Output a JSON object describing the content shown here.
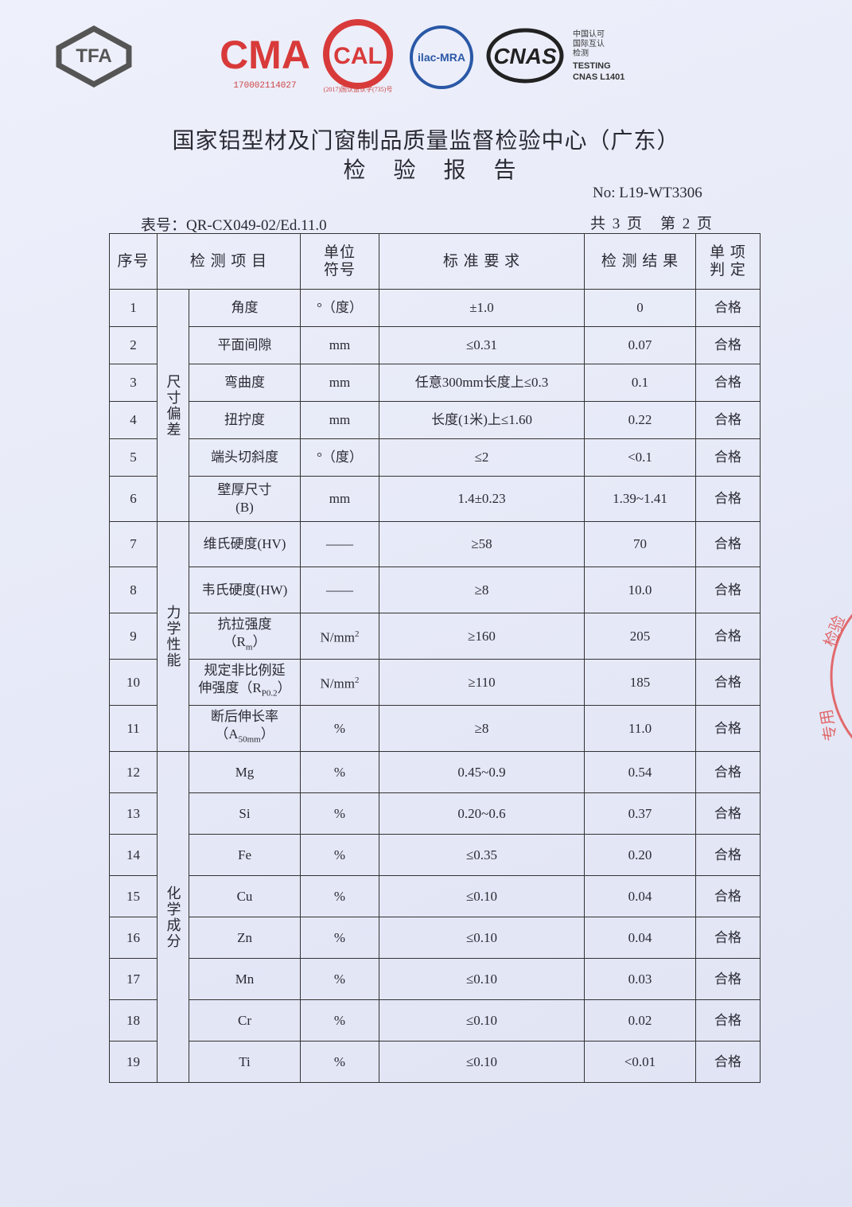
{
  "logos": {
    "tfa": "TFA",
    "cma": "CMA",
    "cma_no": "170002114027",
    "cal": "CAL",
    "cal_no": "(2017)国认监认字(735)号",
    "ilac": "ilac-MRA",
    "cnas": "CNAS",
    "cnas_text": [
      "中国认可",
      "国际互认",
      "检测",
      "TESTING",
      "CNAS L1401"
    ]
  },
  "header": {
    "title": "国家铝型材及门窗制品质量监督检验中心（广东）",
    "subtitle": "检 验 报 告",
    "no_label": "No:",
    "no": "L19-WT3306",
    "form_label": "表号：",
    "form_no": "QR-CX049-02/Ed.11.0",
    "pages": "共 3 页　第 2 页"
  },
  "stamp": [
    "检验",
    "专用"
  ],
  "table": {
    "headers": {
      "no": "序号",
      "item": "检 测 项 目",
      "unit": [
        "单位",
        "符号"
      ],
      "standard": "标 准 要 求",
      "result": "检 测 结 果",
      "verdict": [
        "单 项",
        "判 定"
      ]
    },
    "groups": [
      {
        "label": "尺寸偏差",
        "rows": [
          {
            "no": "1",
            "item": "角度",
            "unit": "°（度）",
            "standard": "±1.0",
            "result": "0",
            "verdict": "合格"
          },
          {
            "no": "2",
            "item": "平面间隙",
            "unit": "mm",
            "standard": "≤0.31",
            "result": "0.07",
            "verdict": "合格"
          },
          {
            "no": "3",
            "item": "弯曲度",
            "unit": "mm",
            "standard": "任意300mm长度上≤0.3",
            "result": "0.1",
            "verdict": "合格"
          },
          {
            "no": "4",
            "item": "扭拧度",
            "unit": "mm",
            "standard": "长度(1米)上≤1.60",
            "result": "0.22",
            "verdict": "合格"
          },
          {
            "no": "5",
            "item": "端头切斜度",
            "unit": "°（度）",
            "standard": "≤2",
            "result": "<0.1",
            "verdict": "合格"
          },
          {
            "no": "6",
            "item": [
              "壁厚尺寸",
              "(B)"
            ],
            "unit": "mm",
            "standard": "1.4±0.23",
            "result": "1.39~1.41",
            "verdict": "合格"
          }
        ]
      },
      {
        "label": "力学性能",
        "rows": [
          {
            "no": "7",
            "item": "维氏硬度(HV)",
            "unit": "——",
            "standard": "≥58",
            "result": "70",
            "verdict": "合格"
          },
          {
            "no": "8",
            "item": "韦氏硬度(HW)",
            "unit": "——",
            "standard": "≥8",
            "result": "10.0",
            "verdict": "合格"
          },
          {
            "no": "9",
            "item": {
              "lines": [
                "抗拉强度",
                "（R"
              ],
              "sub": "m",
              "end": "）"
            },
            "unit": {
              "text": "N/mm",
              "sup": "2"
            },
            "standard": "≥160",
            "result": "205",
            "verdict": "合格"
          },
          {
            "no": "10",
            "item": {
              "lines": [
                "规定非比例延",
                "伸强度（R"
              ],
              "sub": "P0.2",
              "end": "）"
            },
            "unit": {
              "text": "N/mm",
              "sup": "2"
            },
            "standard": "≥110",
            "result": "185",
            "verdict": "合格"
          },
          {
            "no": "11",
            "item": {
              "lines": [
                "断后伸长率",
                "（A"
              ],
              "sub": "50mm",
              "end": "）"
            },
            "unit": "%",
            "standard": "≥8",
            "result": "11.0",
            "verdict": "合格"
          }
        ]
      },
      {
        "label": "化学成分",
        "rows": [
          {
            "no": "12",
            "item": "Mg",
            "unit": "%",
            "standard": "0.45~0.9",
            "result": "0.54",
            "verdict": "合格"
          },
          {
            "no": "13",
            "item": "Si",
            "unit": "%",
            "standard": "0.20~0.6",
            "result": "0.37",
            "verdict": "合格"
          },
          {
            "no": "14",
            "item": "Fe",
            "unit": "%",
            "standard": "≤0.35",
            "result": "0.20",
            "verdict": "合格"
          },
          {
            "no": "15",
            "item": "Cu",
            "unit": "%",
            "standard": "≤0.10",
            "result": "0.04",
            "verdict": "合格"
          },
          {
            "no": "16",
            "item": "Zn",
            "unit": "%",
            "standard": "≤0.10",
            "result": "0.04",
            "verdict": "合格"
          },
          {
            "no": "17",
            "item": "Mn",
            "unit": "%",
            "standard": "≤0.10",
            "result": "0.03",
            "verdict": "合格"
          },
          {
            "no": "18",
            "item": "Cr",
            "unit": "%",
            "standard": "≤0.10",
            "result": "0.02",
            "verdict": "合格"
          },
          {
            "no": "19",
            "item": "Ti",
            "unit": "%",
            "standard": "≤0.10",
            "result": "<0.01",
            "verdict": "合格"
          }
        ]
      }
    ]
  }
}
